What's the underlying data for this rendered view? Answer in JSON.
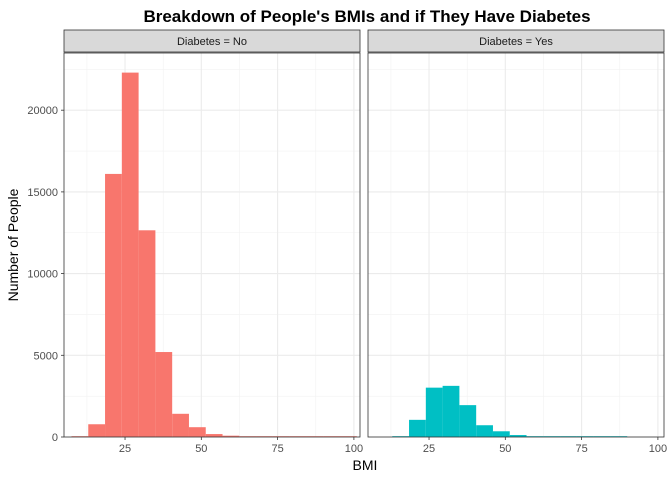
{
  "chart_data": {
    "type": "bar",
    "title": "Breakdown of People's BMIs and if They Have Diabetes",
    "xlabel": "BMI",
    "ylabel": "Number of People",
    "xlim": [
      5,
      102
    ],
    "ylim": [
      0,
      23500
    ],
    "x_ticks": [
      25,
      50,
      75,
      100
    ],
    "y_ticks": [
      0,
      5000,
      10000,
      15000,
      20000
    ],
    "bin_width": 5.5,
    "grid": true,
    "legend": "none",
    "panels": [
      {
        "strip_label": "Diabetes = No",
        "color": "#F8766D",
        "bins": [
          {
            "x": 10.2,
            "count": 10
          },
          {
            "x": 15.7,
            "count": 780
          },
          {
            "x": 21.2,
            "count": 16100
          },
          {
            "x": 26.7,
            "count": 22300
          },
          {
            "x": 32.2,
            "count": 12650
          },
          {
            "x": 37.7,
            "count": 5200
          },
          {
            "x": 43.2,
            "count": 1420
          },
          {
            "x": 48.7,
            "count": 600
          },
          {
            "x": 54.2,
            "count": 180
          },
          {
            "x": 59.7,
            "count": 80
          },
          {
            "x": 65.2,
            "count": 30
          },
          {
            "x": 70.7,
            "count": 15
          },
          {
            "x": 76.2,
            "count": 10
          },
          {
            "x": 81.7,
            "count": 8
          },
          {
            "x": 87.2,
            "count": 5
          },
          {
            "x": 92.7,
            "count": 4
          },
          {
            "x": 98.2,
            "count": 3
          }
        ]
      },
      {
        "strip_label": "Diabetes = Yes",
        "color": "#00BFC4",
        "bins": [
          {
            "x": 15.7,
            "count": 50
          },
          {
            "x": 21.2,
            "count": 1050
          },
          {
            "x": 26.7,
            "count": 3020
          },
          {
            "x": 32.2,
            "count": 3130
          },
          {
            "x": 37.7,
            "count": 1950
          },
          {
            "x": 43.2,
            "count": 720
          },
          {
            "x": 48.7,
            "count": 350
          },
          {
            "x": 54.2,
            "count": 120
          },
          {
            "x": 59.7,
            "count": 40
          },
          {
            "x": 65.2,
            "count": 20
          },
          {
            "x": 70.7,
            "count": 10
          },
          {
            "x": 76.2,
            "count": 8
          },
          {
            "x": 81.7,
            "count": 5
          },
          {
            "x": 87.2,
            "count": 3
          }
        ]
      }
    ]
  }
}
